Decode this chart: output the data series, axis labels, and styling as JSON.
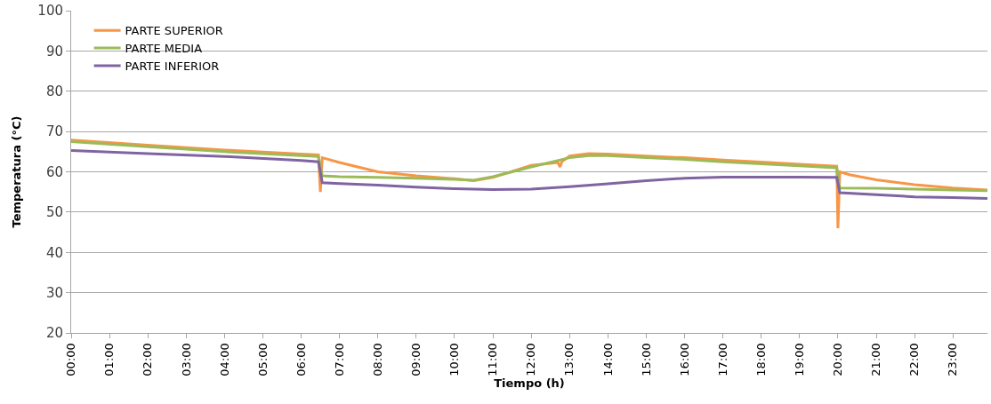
{
  "chart_data": {
    "type": "line",
    "xlabel": "Tiempo (h)",
    "ylabel": "Temperatura (°C)",
    "xlim": [
      0,
      23.9
    ],
    "ylim": [
      20,
      100
    ],
    "yticks": [
      20,
      30,
      40,
      50,
      60,
      70,
      80,
      90,
      100
    ],
    "xticks": [
      {
        "value": 0,
        "label": "00:00"
      },
      {
        "value": 1,
        "label": "01:00"
      },
      {
        "value": 2,
        "label": "02:00"
      },
      {
        "value": 3,
        "label": "03:00"
      },
      {
        "value": 4,
        "label": "04:00"
      },
      {
        "value": 5,
        "label": "05:00"
      },
      {
        "value": 6,
        "label": "06:00"
      },
      {
        "value": 7,
        "label": "07:00"
      },
      {
        "value": 8,
        "label": "08:00"
      },
      {
        "value": 9,
        "label": "09:00"
      },
      {
        "value": 10,
        "label": "10:00"
      },
      {
        "value": 11,
        "label": "11:00"
      },
      {
        "value": 12,
        "label": "12:00"
      },
      {
        "value": 13,
        "label": "13:00"
      },
      {
        "value": 14,
        "label": "14:00"
      },
      {
        "value": 15,
        "label": "15:00"
      },
      {
        "value": 16,
        "label": "16:00"
      },
      {
        "value": 17,
        "label": "17:00"
      },
      {
        "value": 18,
        "label": "18:00"
      },
      {
        "value": 19,
        "label": "19:00"
      },
      {
        "value": 20,
        "label": "20:00"
      },
      {
        "value": 21,
        "label": "21:00"
      },
      {
        "value": 22,
        "label": "22:00"
      },
      {
        "value": 23,
        "label": "23:00"
      }
    ],
    "grid": "y",
    "legend": "top left",
    "marker": "none",
    "line_style": "solid",
    "series": [
      {
        "name": "PARTE SUPERIOR",
        "color": "#f79646",
        "x": [
          0,
          2,
          4,
          6,
          6.45,
          6.5,
          6.55,
          7,
          8,
          9,
          10,
          10.5,
          11,
          12,
          12.7,
          12.75,
          12.8,
          13,
          13.5,
          14,
          15,
          16,
          17,
          18,
          19,
          19.97,
          20.0,
          20.05,
          20.3,
          21,
          22,
          23,
          23.9
        ],
        "values": [
          67.9,
          66.6,
          65.4,
          64.4,
          64.2,
          55.0,
          63.5,
          62.3,
          60.0,
          59.0,
          58.3,
          57.8,
          58.6,
          61.6,
          62.3,
          61.2,
          62.5,
          63.9,
          64.5,
          64.4,
          63.9,
          63.5,
          62.9,
          62.4,
          61.9,
          61.4,
          46.0,
          60.0,
          59.3,
          58.0,
          56.8,
          56.0,
          55.5
        ]
      },
      {
        "name": "PARTE MEDIA",
        "color": "#9bbb59",
        "x": [
          0,
          2,
          4,
          6,
          6.45,
          6.55,
          7,
          8,
          9,
          10,
          10.5,
          11,
          12,
          13,
          13.5,
          14,
          15,
          16,
          17,
          18,
          19,
          19.97,
          20.05,
          21,
          22,
          23,
          23.9
        ],
        "values": [
          67.5,
          66.2,
          65.0,
          64.0,
          63.8,
          59.0,
          58.8,
          58.6,
          58.4,
          58.1,
          57.9,
          58.8,
          61.2,
          63.5,
          64.0,
          64.0,
          63.5,
          63.1,
          62.5,
          62.0,
          61.5,
          61.0,
          56.0,
          55.9,
          55.7,
          55.5,
          55.3
        ]
      },
      {
        "name": "PARTE INFERIOR",
        "color": "#8064a2",
        "x": [
          0,
          2,
          4,
          6,
          6.45,
          6.55,
          7,
          8,
          9,
          10,
          11,
          12,
          13,
          14,
          15,
          16,
          17,
          18,
          19,
          19.97,
          20.05,
          21,
          22,
          23,
          23.9
        ],
        "values": [
          65.3,
          64.5,
          63.8,
          62.8,
          62.5,
          57.3,
          57.1,
          56.7,
          56.2,
          55.8,
          55.6,
          55.7,
          56.3,
          57.0,
          57.8,
          58.4,
          58.7,
          58.7,
          58.7,
          58.6,
          54.8,
          54.3,
          53.8,
          53.6,
          53.4
        ]
      }
    ]
  }
}
